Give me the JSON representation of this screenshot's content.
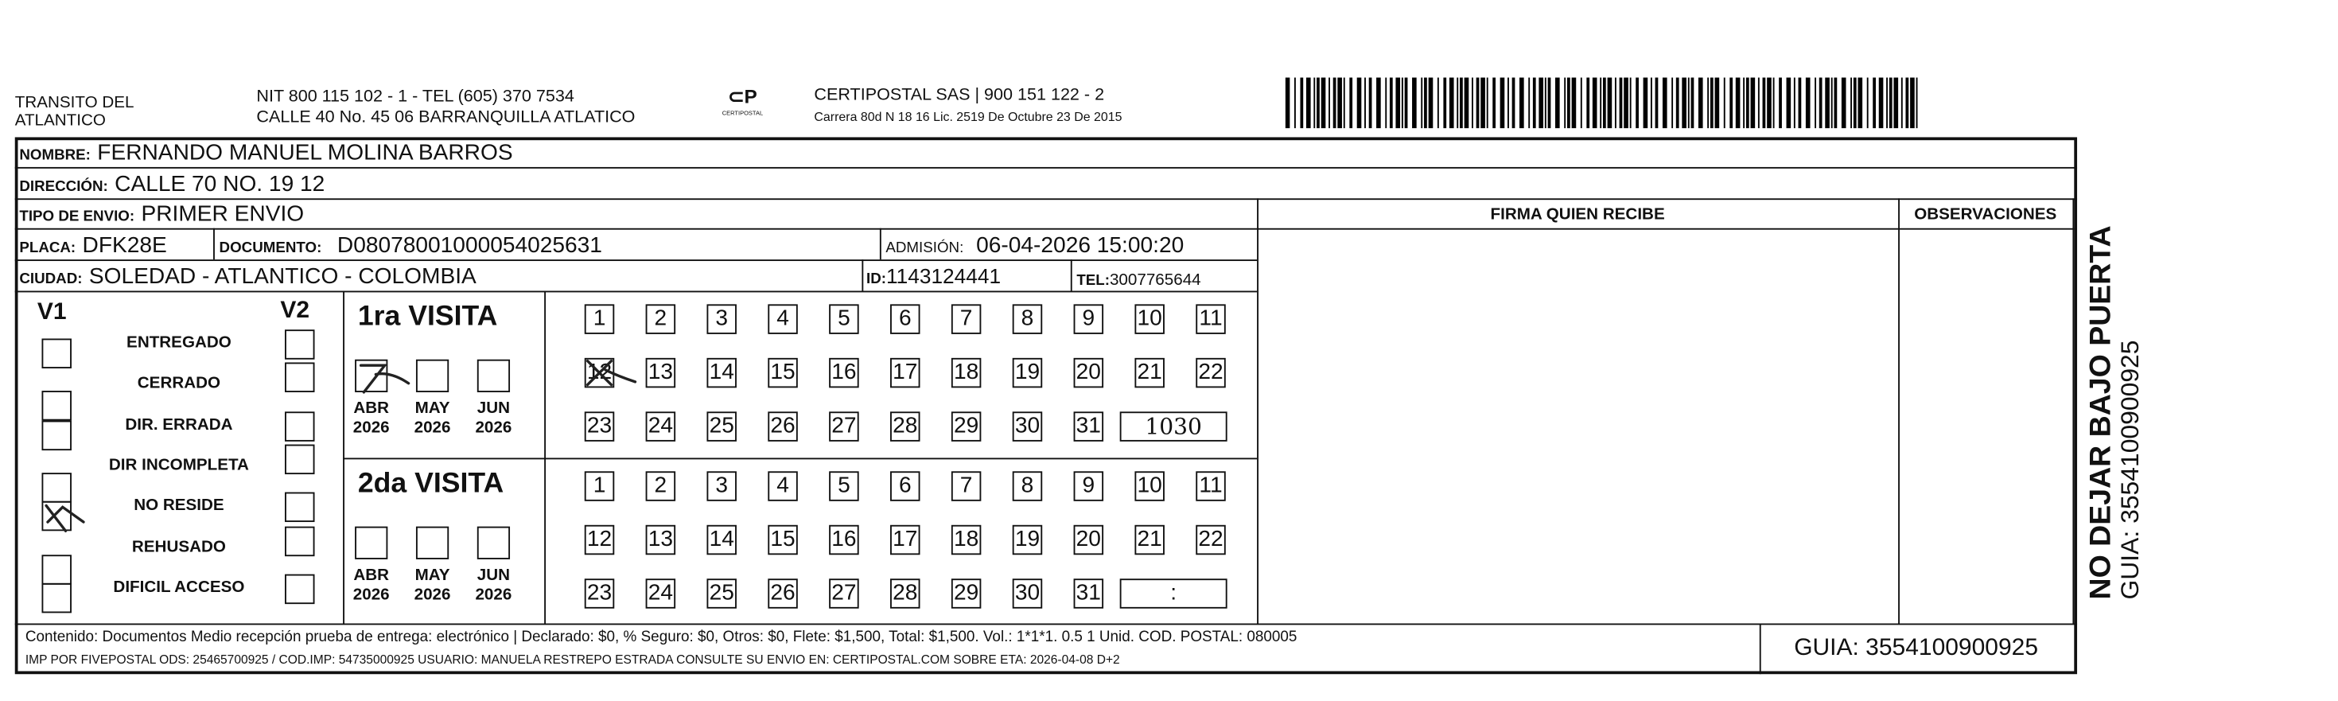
{
  "header": {
    "org_line1": "TRANSITO DEL",
    "org_line2": "ATLANTICO",
    "nit": "NIT 800 115 102 - 1 - TEL (605) 370 7534",
    "address": "CALLE 40 No. 45 06 BARRANQUILLA ATLATICO",
    "logo_text": "CERTIPOSTAL",
    "company": "CERTIPOSTAL SAS | 900 151 122 - 2",
    "company_address": "Carrera 80d N 18 16  Lic. 2519 De Octubre 23 De 2015"
  },
  "recipient": {
    "nombre_label": "NOMBRE:",
    "nombre": "FERNANDO MANUEL MOLINA BARROS",
    "direccion_label": "DIRECCIÓN:",
    "direccion": "CALLE 70 NO. 19 12",
    "tipo_label": "TIPO DE ENVIO:",
    "tipo": "PRIMER ENVIO",
    "placa_label": "PLACA:",
    "placa": "DFK28E",
    "documento_label": "DOCUMENTO:",
    "documento": "D08078001000054025631",
    "admision_label": "ADMISIÓN:",
    "admision": "06-04-2026 15:00:20",
    "ciudad_label": "CIUDAD:",
    "ciudad": "SOLEDAD - ATLANTICO - COLOMBIA",
    "id_label": "ID:",
    "id": "1143124441",
    "tel_label": "TEL:",
    "tel": "3007765644"
  },
  "columns": {
    "firma": "FIRMA QUIEN RECIBE",
    "observaciones": "OBSERVACIONES"
  },
  "status": {
    "v1": "V1",
    "v2": "V2",
    "options": [
      "ENTREGADO",
      "CERRADO",
      "DIR. ERRADA",
      "DIR INCOMPLETA",
      "NO RESIDE",
      "REHUSADO",
      "DIFICIL ACCESO"
    ],
    "v1_checked": "NO RESIDE"
  },
  "visits": [
    {
      "title": "1ra VISITA",
      "months": [
        {
          "m": "ABR",
          "y": "2026"
        },
        {
          "m": "MAY",
          "y": "2026"
        },
        {
          "m": "JUN",
          "y": "2026"
        }
      ],
      "checked_month": "ABR",
      "checked_day": "12",
      "time": "1030"
    },
    {
      "title": "2da VISITA",
      "months": [
        {
          "m": "ABR",
          "y": "2026"
        },
        {
          "m": "MAY",
          "y": "2026"
        },
        {
          "m": "JUN",
          "y": "2026"
        }
      ],
      "checked_month": "",
      "checked_day": "",
      "time": ":"
    }
  ],
  "days": [
    "1",
    "2",
    "3",
    "4",
    "5",
    "6",
    "7",
    "8",
    "9",
    "10",
    "11",
    "12",
    "13",
    "14",
    "15",
    "16",
    "17",
    "18",
    "19",
    "20",
    "21",
    "22",
    "23",
    "24",
    "25",
    "26",
    "27",
    "28",
    "29",
    "30",
    "31"
  ],
  "footer": {
    "line1": "Contenido: Documentos Medio recepción prueba de entrega: electrónico | Declarado: $0, % Seguro: $0, Otros: $0, Flete: $1,500, Total: $1,500. Vol.: 1*1*1. 0.5  1 Unid. COD. POSTAL: 080005",
    "line2": "IMP POR FIVEPOSTAL ODS: 25465700925 / COD.IMP: 54735000925 USUARIO: MANUELA RESTREPO ESTRADA CONSULTE SU ENVIO EN: CERTIPOSTAL.COM SOBRE ETA: 2026-04-08 D+2",
    "guia": "GUIA: 3554100900925"
  },
  "side": {
    "warning": "NO DEJAR BAJO PUERTA",
    "guia": "GUIA: 3554100900925"
  }
}
